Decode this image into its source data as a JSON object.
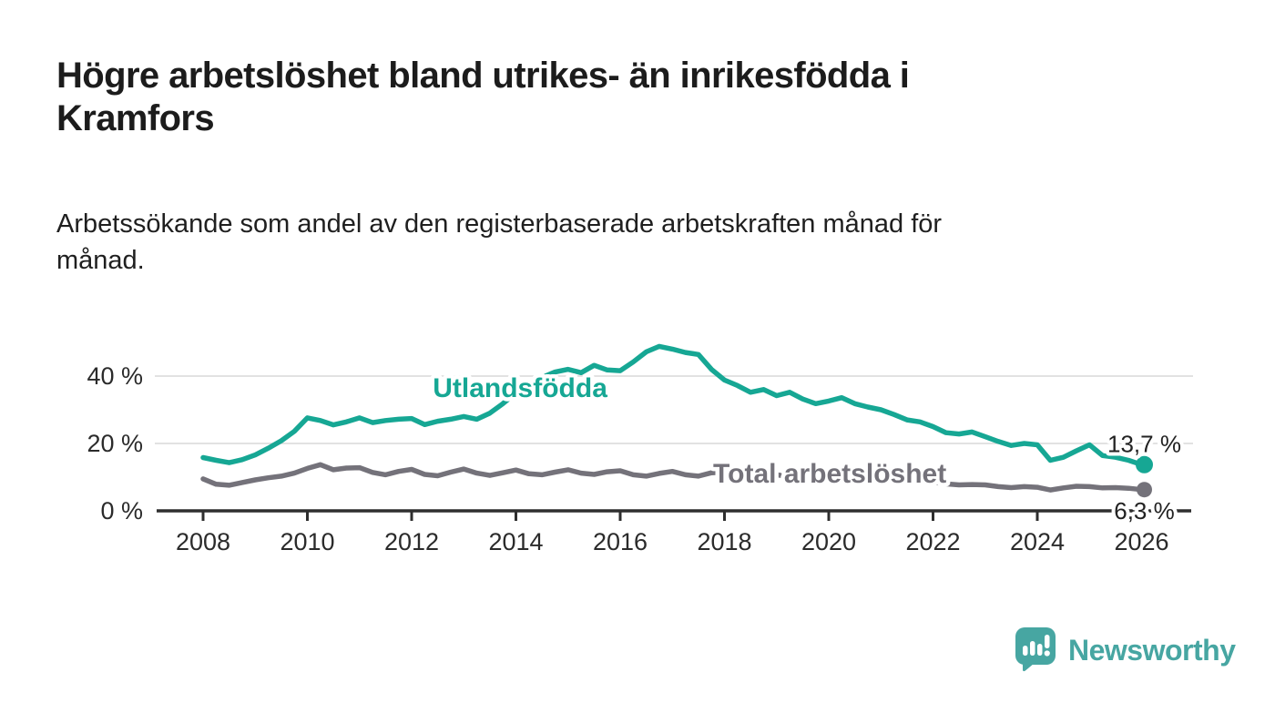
{
  "header": {
    "title_line1": "Högre arbetslöshet bland utrikes- än inrikesfödda i",
    "title_line2": "Kramfors",
    "subtitle_line1": "Arbetssökande som andel av den registerbaserade arbetskraften månad för",
    "subtitle_line2": "månad."
  },
  "chart_data": {
    "type": "line",
    "unit": "percent",
    "grid": "horizontal gridlines at 20 and 40",
    "legend_position": "inline labels on lines",
    "start_year": 2008,
    "points_per_year": 4,
    "xlim": [
      2007.1,
      2026.95
    ],
    "ylim": [
      0,
      52
    ],
    "x_ticks": [
      2008,
      2010,
      2012,
      2014,
      2016,
      2018,
      2020,
      2022,
      2024,
      2026
    ],
    "y_ticks": [
      {
        "value": 0,
        "label": "0 %"
      },
      {
        "value": 20,
        "label": "20 %"
      },
      {
        "value": 40,
        "label": "40 %"
      }
    ],
    "axis_color": "#2e2e2e",
    "grid_color": "#d9d9d9",
    "series": [
      {
        "name": "Utlandsfödda",
        "color": "#16a794",
        "end_label": "13,7 %",
        "end_value": 13.7,
        "label_pos": {
          "x": 2014.08,
          "y": 36.5
        },
        "values": [
          15.8,
          15.0,
          14.3,
          15.2,
          16.6,
          18.6,
          20.8,
          23.6,
          27.6,
          26.8,
          25.5,
          26.4,
          27.6,
          26.2,
          26.8,
          27.2,
          27.4,
          25.6,
          26.6,
          27.2,
          28.0,
          27.2,
          29.0,
          31.8,
          35.0,
          37.6,
          39.6,
          41.2,
          42.0,
          41.0,
          43.2,
          41.8,
          41.6,
          44.2,
          47.2,
          48.8,
          48.0,
          47.0,
          46.4,
          42.0,
          38.8,
          37.2,
          35.2,
          36.0,
          34.2,
          35.2,
          33.2,
          31.8,
          32.6,
          33.6,
          31.8,
          30.8,
          30.0,
          28.6,
          27.0,
          26.4,
          25.0,
          23.2,
          22.8,
          23.4,
          22.0,
          20.6,
          19.4,
          20.0,
          19.6,
          15.0,
          15.9,
          17.8,
          19.6,
          16.4,
          15.9,
          15.0,
          13.7
        ]
      },
      {
        "name": "Total arbetslöshet",
        "color": "#74727a",
        "end_label": "6,3 %",
        "end_value": 6.3,
        "label_pos": {
          "x": 2020.02,
          "y": 11.1
        },
        "values": [
          9.5,
          7.9,
          7.6,
          8.4,
          9.2,
          9.8,
          10.3,
          11.2,
          12.6,
          13.7,
          12.2,
          12.7,
          12.8,
          11.4,
          10.7,
          11.7,
          12.3,
          10.8,
          10.4,
          11.5,
          12.4,
          11.2,
          10.5,
          11.3,
          12.1,
          11.0,
          10.7,
          11.5,
          12.2,
          11.2,
          10.8,
          11.6,
          11.9,
          10.7,
          10.3,
          11.1,
          11.7,
          10.7,
          10.3,
          11.3,
          11.5,
          10.7,
          10.2,
          10.9,
          10.7,
          10.1,
          9.7,
          10.3,
          10.5,
          10.0,
          9.6,
          9.9,
          9.7,
          9.2,
          8.8,
          8.6,
          8.5,
          8.0,
          7.7,
          7.8,
          7.7,
          7.2,
          6.9,
          7.2,
          7.0,
          6.2,
          6.8,
          7.3,
          7.2,
          6.8,
          6.9,
          6.7,
          6.3
        ]
      }
    ]
  },
  "footer": {
    "brand": "Newsworthy",
    "brand_color": "#47a6a2"
  }
}
